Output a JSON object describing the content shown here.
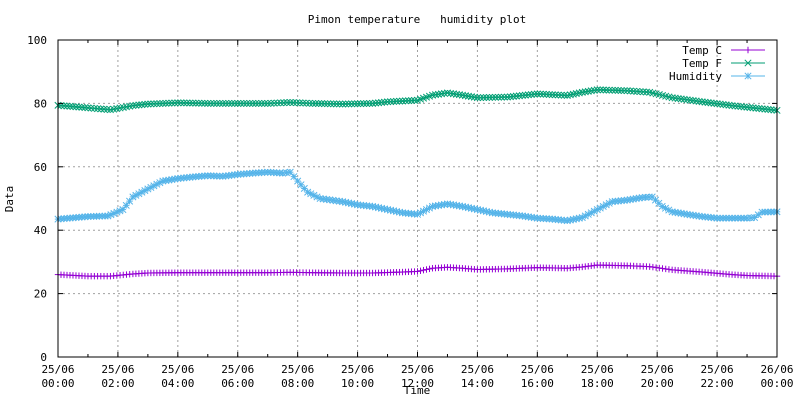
{
  "chart_data": {
    "type": "line",
    "title": "Pimon temperature   humidity plot",
    "xlabel": "Time",
    "ylabel": "Data",
    "ylim": [
      0,
      100
    ],
    "yticks": [
      0,
      20,
      40,
      60,
      80,
      100
    ],
    "x_range": [
      "25/06 00:00",
      "26/06 00:00"
    ],
    "xtick_labels": [
      [
        "25/06",
        "00:00"
      ],
      [
        "25/06",
        "02:00"
      ],
      [
        "25/06",
        "04:00"
      ],
      [
        "25/06",
        "06:00"
      ],
      [
        "25/06",
        "08:00"
      ],
      [
        "25/06",
        "10:00"
      ],
      [
        "25/06",
        "12:00"
      ],
      [
        "25/06",
        "14:00"
      ],
      [
        "25/06",
        "16:00"
      ],
      [
        "25/06",
        "18:00"
      ],
      [
        "25/06",
        "20:00"
      ],
      [
        "25/06",
        "22:00"
      ],
      [
        "26/06",
        "00:00"
      ]
    ],
    "grid": true,
    "legend": "top-right",
    "series": [
      {
        "name": "Temp C",
        "color": "#9400d3",
        "marker": "plus",
        "points": [
          [
            "25/06 00:00",
            26.0
          ],
          [
            "25/06 01:00",
            25.5
          ],
          [
            "25/06 01:45",
            25.5
          ],
          [
            "25/06 02:30",
            26.2
          ],
          [
            "25/06 03:00",
            26.5
          ],
          [
            "25/06 04:00",
            26.6
          ],
          [
            "25/06 05:00",
            26.6
          ],
          [
            "25/06 06:00",
            26.6
          ],
          [
            "25/06 07:00",
            26.6
          ],
          [
            "25/06 07:45",
            26.7
          ],
          [
            "25/06 08:30",
            26.6
          ],
          [
            "25/06 09:30",
            26.5
          ],
          [
            "25/06 10:30",
            26.5
          ],
          [
            "25/06 11:30",
            26.8
          ],
          [
            "25/06 12:00",
            27.0
          ],
          [
            "25/06 12:30",
            28.0
          ],
          [
            "25/06 13:00",
            28.3
          ],
          [
            "25/06 13:30",
            28.0
          ],
          [
            "25/06 14:00",
            27.6
          ],
          [
            "25/06 15:00",
            27.8
          ],
          [
            "25/06 16:00",
            28.2
          ],
          [
            "25/06 17:00",
            28.0
          ],
          [
            "25/06 17:30",
            28.4
          ],
          [
            "25/06 18:00",
            29.0
          ],
          [
            "25/06 19:00",
            28.8
          ],
          [
            "25/06 19:45",
            28.5
          ],
          [
            "25/06 20:30",
            27.5
          ],
          [
            "25/06 21:30",
            26.8
          ],
          [
            "25/06 22:30",
            26.0
          ],
          [
            "25/06 23:00",
            25.7
          ],
          [
            "26/06 00:00",
            25.5
          ]
        ]
      },
      {
        "name": "Temp F",
        "color": "#009e73",
        "marker": "cross",
        "points": [
          [
            "25/06 00:00",
            79.4
          ],
          [
            "25/06 01:00",
            78.6
          ],
          [
            "25/06 01:45",
            78.0
          ],
          [
            "25/06 02:30",
            79.3
          ],
          [
            "25/06 03:00",
            79.8
          ],
          [
            "25/06 04:00",
            80.2
          ],
          [
            "25/06 05:00",
            80.0
          ],
          [
            "25/06 06:00",
            80.0
          ],
          [
            "25/06 07:00",
            80.0
          ],
          [
            "25/06 07:45",
            80.3
          ],
          [
            "25/06 08:30",
            80.0
          ],
          [
            "25/06 09:30",
            79.8
          ],
          [
            "25/06 10:30",
            80.0
          ],
          [
            "25/06 11:00",
            80.5
          ],
          [
            "25/06 12:00",
            81.0
          ],
          [
            "25/06 12:30",
            82.6
          ],
          [
            "25/06 13:00",
            83.3
          ],
          [
            "25/06 13:30",
            82.6
          ],
          [
            "25/06 14:00",
            81.8
          ],
          [
            "25/06 15:00",
            82.0
          ],
          [
            "25/06 16:00",
            83.0
          ],
          [
            "25/06 17:00",
            82.5
          ],
          [
            "25/06 17:30",
            83.5
          ],
          [
            "25/06 18:00",
            84.3
          ],
          [
            "25/06 19:00",
            84.0
          ],
          [
            "25/06 19:45",
            83.5
          ],
          [
            "25/06 20:30",
            81.8
          ],
          [
            "25/06 21:30",
            80.5
          ],
          [
            "25/06 22:30",
            79.3
          ],
          [
            "25/06 23:00",
            78.8
          ],
          [
            "26/06 00:00",
            77.8
          ]
        ]
      },
      {
        "name": "Humidity",
        "color": "#56b4e9",
        "marker": "star",
        "points": [
          [
            "25/06 00:00",
            43.5
          ],
          [
            "25/06 01:00",
            44.3
          ],
          [
            "25/06 01:40",
            44.5
          ],
          [
            "25/06 02:10",
            46.5
          ],
          [
            "25/06 02:30",
            50.5
          ],
          [
            "25/06 03:00",
            53.0
          ],
          [
            "25/06 03:30",
            55.5
          ],
          [
            "25/06 04:00",
            56.3
          ],
          [
            "25/06 04:30",
            56.8
          ],
          [
            "25/06 05:00",
            57.2
          ],
          [
            "25/06 05:30",
            57.0
          ],
          [
            "25/06 06:00",
            57.6
          ],
          [
            "25/06 06:30",
            58.0
          ],
          [
            "25/06 07:00",
            58.3
          ],
          [
            "25/06 07:30",
            58.0
          ],
          [
            "25/06 07:45",
            58.3
          ],
          [
            "25/06 08:00",
            55.5
          ],
          [
            "25/06 08:20",
            52.0
          ],
          [
            "25/06 08:45",
            50.0
          ],
          [
            "25/06 09:30",
            49.0
          ],
          [
            "25/06 10:00",
            48.0
          ],
          [
            "25/06 10:30",
            47.5
          ],
          [
            "25/06 11:00",
            46.5
          ],
          [
            "25/06 11:30",
            45.5
          ],
          [
            "25/06 12:00",
            45.0
          ],
          [
            "25/06 12:30",
            47.5
          ],
          [
            "25/06 13:00",
            48.3
          ],
          [
            "25/06 13:30",
            47.5
          ],
          [
            "25/06 14:00",
            46.5
          ],
          [
            "25/06 14:30",
            45.5
          ],
          [
            "25/06 15:00",
            45.0
          ],
          [
            "25/06 15:30",
            44.5
          ],
          [
            "25/06 16:00",
            43.8
          ],
          [
            "25/06 16:30",
            43.5
          ],
          [
            "25/06 17:00",
            43.0
          ],
          [
            "25/06 17:30",
            44.0
          ],
          [
            "25/06 18:00",
            46.5
          ],
          [
            "25/06 18:30",
            49.0
          ],
          [
            "25/06 19:00",
            49.5
          ],
          [
            "25/06 19:30",
            50.3
          ],
          [
            "25/06 19:50",
            50.5
          ],
          [
            "25/06 20:10",
            47.5
          ],
          [
            "25/06 20:30",
            45.8
          ],
          [
            "25/06 21:00",
            45.0
          ],
          [
            "25/06 21:30",
            44.3
          ],
          [
            "25/06 22:00",
            43.8
          ],
          [
            "25/06 23:00",
            43.8
          ],
          [
            "25/06 23:15",
            44.0
          ],
          [
            "25/06 23:30",
            45.7
          ],
          [
            "26/06 00:00",
            45.8
          ]
        ]
      }
    ]
  }
}
